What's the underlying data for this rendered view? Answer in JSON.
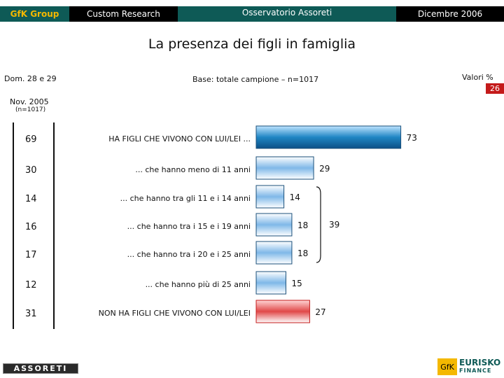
{
  "header": {
    "brand": "GfK Group",
    "left": "Custom Research",
    "center": "Osservatorio Assoreti",
    "right": "Dicembre 2006"
  },
  "title": "La presenza dei figli in famiglia",
  "question": "Dom. 28 e 29",
  "base": "Base: totale campione – n=1017",
  "units": "Valori %",
  "badge": "26",
  "prev_label": "Nov. 2005",
  "prev_n": "(n=1017)",
  "colors": {
    "main_bar": "#1f86c4",
    "no_kids_bar": "#e04848",
    "other_bars": "#7fb8e8"
  },
  "chart_data": {
    "type": "bar",
    "orientation": "horizontal",
    "title": "La presenza dei figli in famiglia",
    "categories": [
      "HA FIGLI CHE VIVONO CON LUI/LEI ...",
      "... che hanno meno di 11 anni",
      "... che hanno tra gli 11 e i 14 anni",
      "... che hanno tra i 15 e i 19 anni",
      "... che hanno tra i 20 e i 25 anni",
      "... che hanno più di 25 anni",
      "NON HA FIGLI CHE VIVONO CON LUI/LEI"
    ],
    "series": [
      {
        "name": "Dicembre 2006",
        "values": [
          73,
          29,
          14,
          18,
          18,
          15,
          27
        ]
      },
      {
        "name": "Nov. 2005",
        "values": [
          69,
          30,
          14,
          16,
          17,
          12,
          31
        ]
      }
    ],
    "bracket_total": {
      "label": "39",
      "covers": [
        2,
        3,
        4
      ]
    },
    "xlim": [
      0,
      100
    ]
  },
  "logos": {
    "assoreti": "ASSORETI",
    "gfk": "GfK",
    "eurisko": "EURISKO",
    "eurisko_sub": "FINANCE"
  }
}
